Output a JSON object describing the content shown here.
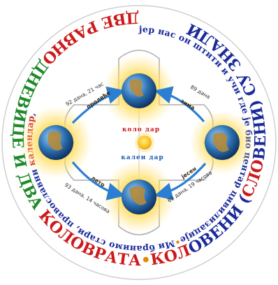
{
  "outer_ring": {
    "segments": [
      {
        "text": "ДВЕ РАВНО",
        "color": "#cc1a1a"
      },
      {
        "text": "ДНЕВИЦЕ И ДВА ",
        "color": "#1f8a2a"
      },
      {
        "text": "КОЛОВРАТА",
        "color": "#cc1a1a"
      },
      {
        "text": "•",
        "color": "#e08a00"
      },
      {
        "text": "КОЛ",
        "color": "#cc1a1a"
      },
      {
        "text": "ОВЕНИ (",
        "color": "#1a2a9a"
      },
      {
        "text": "СЛО",
        "color": "#cc1a1a"
      },
      {
        "text": "ВЕНИ) СУ ЗНАЛИ",
        "color": "#1a2a9a"
      }
    ]
  },
  "inner_ring": {
    "segments": [
      {
        "text": "јер нас он штити и учи где је био центар цивилизације",
        "color": "#1a2a9a"
      },
      {
        "text": "•",
        "color": "#e08a00"
      },
      {
        "text": "Ми бранимо стари, православни ",
        "color": "#1a2a9a"
      },
      {
        "text": "календар",
        "color": "#cc1a1a"
      },
      {
        "text": ", ",
        "color": "#1a2a9a"
      }
    ]
  },
  "center": {
    "kolodar": "коло дар",
    "kalendar": "кален дар",
    "kolodar_color": "#cc1a1a",
    "kalendar_color": "#1a5ab0"
  },
  "seasons": {
    "proleche": "пролеће",
    "zima": "зима",
    "leto": "лето",
    "jesen": "јесен"
  },
  "durations": {
    "proleche": "92 дана, 21 час",
    "zima": "89 дана",
    "leto": "93 дана, 14 часова",
    "jesen": "89 дана, 19 часова"
  },
  "colors": {
    "glow": "#ffd84a",
    "sun": "#f4b400",
    "arrow": "#2a7fd4",
    "earth_ocean": "#2a6fb0",
    "earth_land": "#b58a3a"
  }
}
